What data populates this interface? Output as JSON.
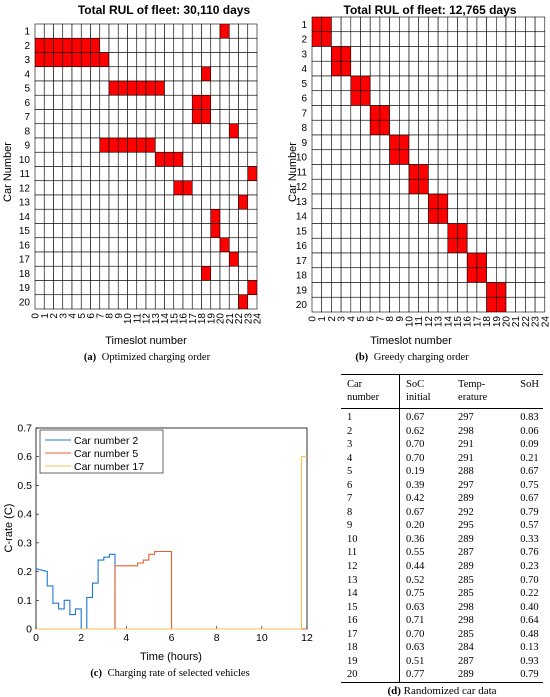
{
  "colors": {
    "filled": "#ff0000",
    "grid": "#000000",
    "car2": "#1f77d4",
    "car5": "#e8612c",
    "car17": "#f2c14e"
  },
  "panel_a": {
    "caption_label": "(a)",
    "caption_text": "Optimized charging order"
  },
  "panel_b": {
    "caption_label": "(b)",
    "caption_text": "Greedy charging order"
  },
  "panel_c": {
    "caption_label": "(c)",
    "caption_text": "Charging rate of selected vehicles"
  },
  "panel_d": {
    "caption_label": "(d)",
    "caption_text": "Randomized car data",
    "headers": [
      "Car number",
      "SoC initial",
      "Temp-erature",
      "SoH"
    ],
    "rows": [
      [
        "1",
        "0.67",
        "297",
        "0.83"
      ],
      [
        "2",
        "0.62",
        "298",
        "0.06"
      ],
      [
        "3",
        "0.70",
        "291",
        "0.09"
      ],
      [
        "4",
        "0.70",
        "291",
        "0.21"
      ],
      [
        "5",
        "0.19",
        "288",
        "0.67"
      ],
      [
        "6",
        "0.39",
        "297",
        "0.75"
      ],
      [
        "7",
        "0.42",
        "289",
        "0.67"
      ],
      [
        "8",
        "0.67",
        "292",
        "0.79"
      ],
      [
        "9",
        "0.20",
        "295",
        "0.57"
      ],
      [
        "10",
        "0.36",
        "289",
        "0.33"
      ],
      [
        "11",
        "0.55",
        "287",
        "0.76"
      ],
      [
        "12",
        "0.44",
        "289",
        "0.23"
      ],
      [
        "13",
        "0.52",
        "285",
        "0.70"
      ],
      [
        "14",
        "0.75",
        "285",
        "0.22"
      ],
      [
        "15",
        "0.63",
        "298",
        "0.40"
      ],
      [
        "16",
        "0.71",
        "298",
        "0.64"
      ],
      [
        "17",
        "0.70",
        "285",
        "0.48"
      ],
      [
        "18",
        "0.63",
        "284",
        "0.13"
      ],
      [
        "19",
        "0.51",
        "287",
        "0.93"
      ],
      [
        "20",
        "0.77",
        "289",
        "0.79"
      ]
    ]
  },
  "chart_data": [
    {
      "type": "heatmap",
      "title": "Total RUL of fleet:  30,110 days",
      "xlabel": "Timeslot number",
      "ylabel": "Car Number",
      "x_ticks": [
        "0",
        "1",
        "2",
        "3",
        "4",
        "5",
        "6",
        "7",
        "8",
        "9",
        "10",
        "11",
        "12",
        "13",
        "14",
        "15",
        "16",
        "17",
        "18",
        "19",
        "20",
        "21",
        "22",
        "23",
        "24"
      ],
      "y_ticks": [
        "1",
        "2",
        "3",
        "4",
        "5",
        "6",
        "7",
        "8",
        "9",
        "10",
        "11",
        "12",
        "13",
        "14",
        "15",
        "16",
        "17",
        "18",
        "19",
        "20"
      ],
      "grid": true,
      "charging_slots": [
        {
          "car": 1,
          "from": 20,
          "to": 21
        },
        {
          "car": 2,
          "from": 0,
          "to": 7
        },
        {
          "car": 3,
          "from": 0,
          "to": 8
        },
        {
          "car": 4,
          "from": 18,
          "to": 19
        },
        {
          "car": 5,
          "from": 8,
          "to": 14
        },
        {
          "car": 6,
          "from": 17,
          "to": 19
        },
        {
          "car": 7,
          "from": 17,
          "to": 19
        },
        {
          "car": 8,
          "from": 21,
          "to": 22
        },
        {
          "car": 9,
          "from": 7,
          "to": 13
        },
        {
          "car": 10,
          "from": 13,
          "to": 16
        },
        {
          "car": 11,
          "from": 23,
          "to": 24
        },
        {
          "car": 12,
          "from": 15,
          "to": 17
        },
        {
          "car": 13,
          "from": 22,
          "to": 23
        },
        {
          "car": 14,
          "from": 19,
          "to": 20
        },
        {
          "car": 15,
          "from": 19,
          "to": 20
        },
        {
          "car": 16,
          "from": 20,
          "to": 21
        },
        {
          "car": 17,
          "from": 21,
          "to": 22
        },
        {
          "car": 18,
          "from": 18,
          "to": 19
        },
        {
          "car": 19,
          "from": 23,
          "to": 24
        },
        {
          "car": 20,
          "from": 22,
          "to": 23
        }
      ]
    },
    {
      "type": "heatmap",
      "title": "Total RUL of fleet:  12,765 days",
      "xlabel": "Timeslot number",
      "ylabel": "Car Number",
      "x_ticks": [
        "0",
        "1",
        "2",
        "3",
        "4",
        "5",
        "6",
        "7",
        "8",
        "9",
        "10",
        "11",
        "12",
        "13",
        "14",
        "15",
        "16",
        "17",
        "18",
        "19",
        "20",
        "21",
        "22",
        "23",
        "24"
      ],
      "y_ticks": [
        "1",
        "2",
        "3",
        "4",
        "5",
        "6",
        "7",
        "8",
        "9",
        "10",
        "11",
        "12",
        "13",
        "14",
        "15",
        "16",
        "17",
        "18",
        "19",
        "20"
      ],
      "grid": true,
      "charging_slots": [
        {
          "car": 1,
          "from": 0,
          "to": 2
        },
        {
          "car": 2,
          "from": 0,
          "to": 2
        },
        {
          "car": 3,
          "from": 2,
          "to": 4
        },
        {
          "car": 4,
          "from": 2,
          "to": 4
        },
        {
          "car": 5,
          "from": 4,
          "to": 6
        },
        {
          "car": 6,
          "from": 4,
          "to": 6
        },
        {
          "car": 7,
          "from": 6,
          "to": 8
        },
        {
          "car": 8,
          "from": 6,
          "to": 8
        },
        {
          "car": 9,
          "from": 8,
          "to": 10
        },
        {
          "car": 10,
          "from": 8,
          "to": 10
        },
        {
          "car": 11,
          "from": 10,
          "to": 12
        },
        {
          "car": 12,
          "from": 10,
          "to": 12
        },
        {
          "car": 13,
          "from": 12,
          "to": 14
        },
        {
          "car": 14,
          "from": 12,
          "to": 14
        },
        {
          "car": 15,
          "from": 14,
          "to": 16
        },
        {
          "car": 16,
          "from": 14,
          "to": 16
        },
        {
          "car": 17,
          "from": 16,
          "to": 18
        },
        {
          "car": 18,
          "from": 16,
          "to": 18
        },
        {
          "car": 19,
          "from": 18,
          "to": 20
        },
        {
          "car": 20,
          "from": 18,
          "to": 20
        }
      ]
    },
    {
      "type": "line",
      "title": "",
      "xlabel": "Time (hours)",
      "ylabel": "C-rate (C)",
      "xlim": [
        0,
        12
      ],
      "ylim": [
        0,
        0.7
      ],
      "x_ticks": [
        "0",
        "2",
        "4",
        "6",
        "8",
        "10",
        "12"
      ],
      "y_ticks": [
        "0",
        "0.1",
        "0.2",
        "0.3",
        "0.4",
        "0.5",
        "0.6",
        "0.7"
      ],
      "legend_position": "top-left",
      "series": [
        {
          "name": "Car number 2",
          "x": [
            0,
            0.5,
            0.5,
            0.75,
            0.75,
            1.0,
            1.0,
            1.25,
            1.25,
            1.5,
            1.5,
            1.75,
            1.75,
            2.0,
            2.0,
            2.25,
            2.25,
            2.5,
            2.5,
            2.75,
            2.75,
            3.0,
            3.0,
            3.25,
            3.25,
            3.5,
            3.5,
            12
          ],
          "y": [
            0.21,
            0.2,
            0.15,
            0.15,
            0.09,
            0.09,
            0.07,
            0.07,
            0.1,
            0.1,
            0.05,
            0.05,
            0.07,
            0.07,
            0.0,
            0.0,
            0.11,
            0.11,
            0.16,
            0.16,
            0.24,
            0.24,
            0.25,
            0.25,
            0.26,
            0.26,
            0.0,
            0.0
          ]
        },
        {
          "name": "Car number 5",
          "x": [
            0,
            3.5,
            3.5,
            4.5,
            4.5,
            4.75,
            4.75,
            5.0,
            5.0,
            5.25,
            5.25,
            6.0,
            6.0,
            12
          ],
          "y": [
            0.0,
            0.0,
            0.22,
            0.22,
            0.23,
            0.23,
            0.24,
            0.24,
            0.26,
            0.26,
            0.27,
            0.27,
            0.0,
            0.0
          ]
        },
        {
          "name": "Car number 17",
          "x": [
            0,
            11.75,
            11.75,
            12
          ],
          "y": [
            0.0,
            0.0,
            0.6,
            0.6
          ]
        }
      ]
    }
  ]
}
